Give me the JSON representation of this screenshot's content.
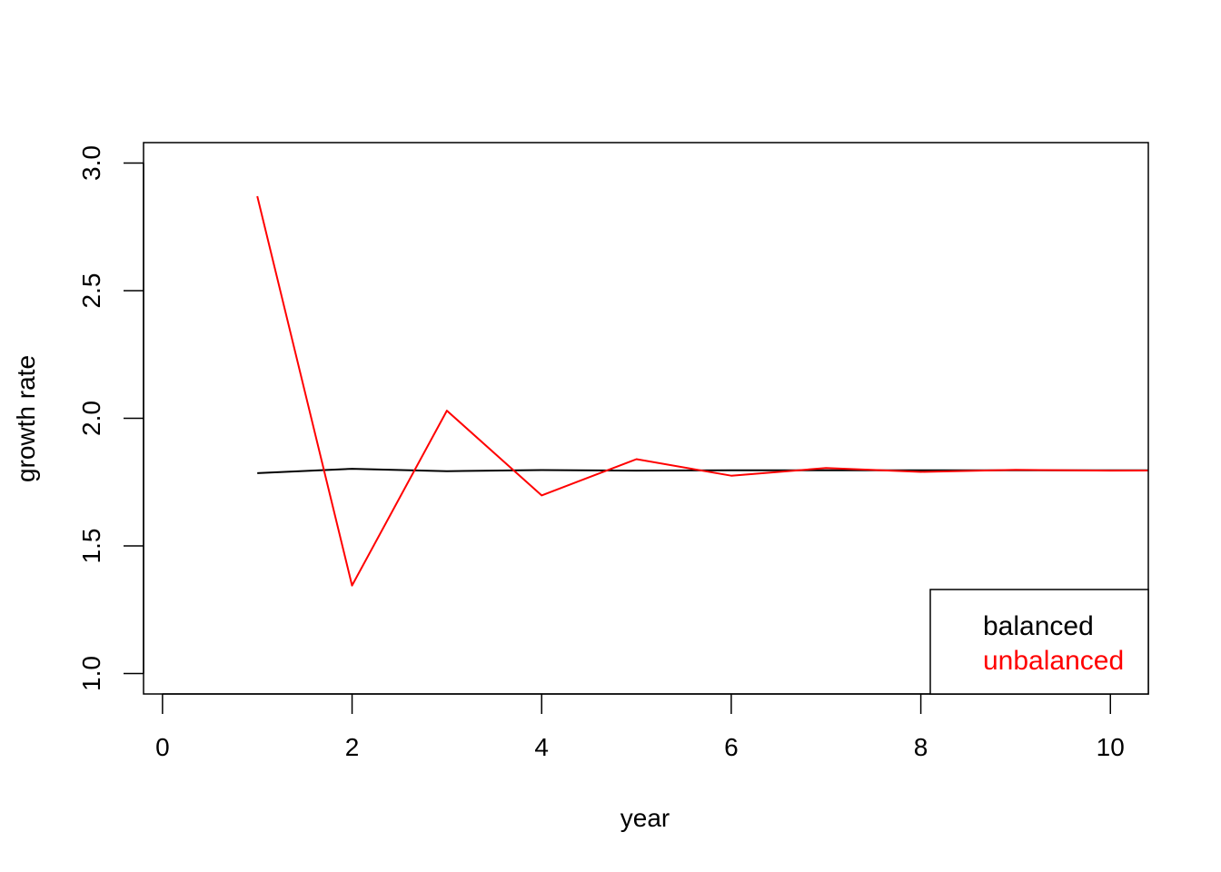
{
  "chart_data": {
    "type": "line",
    "title": "",
    "xlabel": "year",
    "ylabel": "growth rate",
    "xlim": [
      -0.2,
      10.4
    ],
    "ylim": [
      0.92,
      3.08
    ],
    "x_ticks": [
      0,
      2,
      4,
      6,
      8,
      10
    ],
    "x_tick_labels": [
      "0",
      "2",
      "4",
      "6",
      "8",
      "10"
    ],
    "y_ticks": [
      1.0,
      1.5,
      2.0,
      2.5,
      3.0
    ],
    "y_tick_labels": [
      "1.0",
      "1.5",
      "2.0",
      "2.5",
      "3.0"
    ],
    "grid": false,
    "legend_position": "bottom-right",
    "x": [
      1,
      2,
      3,
      4,
      5,
      6,
      7,
      8,
      9,
      10,
      11
    ],
    "series": [
      {
        "name": "balanced",
        "color": "#000000",
        "values": [
          1.785,
          1.802,
          1.793,
          1.797,
          1.795,
          1.796,
          1.796,
          1.796,
          1.796,
          1.796,
          1.796
        ]
      },
      {
        "name": "unbalanced",
        "color": "#ff0000",
        "values": [
          2.87,
          1.345,
          2.03,
          1.698,
          1.84,
          1.775,
          1.805,
          1.79,
          1.798,
          1.795,
          1.796
        ]
      }
    ]
  }
}
